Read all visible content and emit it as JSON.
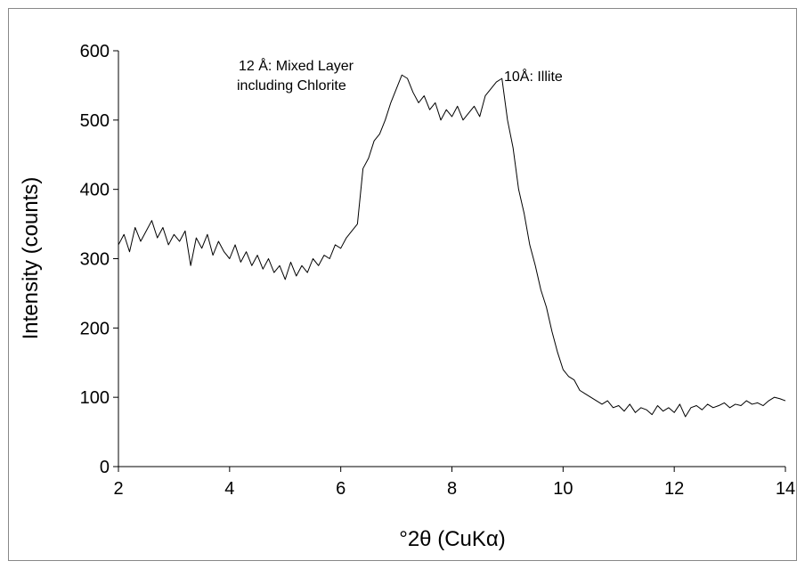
{
  "chart_data": {
    "type": "line",
    "x_label": "°2θ (CuKα)",
    "y_label": "Intensity (counts)",
    "annotations": [
      [
        "12 Å: Mixed Layer",
        "including Chlorite"
      ],
      [
        "10Å: Illite"
      ]
    ],
    "x": [
      2,
      2.1,
      2.2,
      2.3,
      2.4,
      2.5,
      2.6,
      2.7,
      2.8,
      2.9,
      3,
      3.1,
      3.2,
      3.3,
      3.4,
      3.5,
      3.6,
      3.7,
      3.8,
      3.9,
      4,
      4.1,
      4.2,
      4.3,
      4.4,
      4.5,
      4.6,
      4.7,
      4.8,
      4.9,
      5,
      5.1,
      5.2,
      5.3,
      5.4,
      5.5,
      5.6,
      5.7,
      5.8,
      5.9,
      6,
      6.1,
      6.2,
      6.3,
      6.4,
      6.5,
      6.6,
      6.7,
      6.8,
      6.9,
      7,
      7.1,
      7.2,
      7.3,
      7.4,
      7.5,
      7.6,
      7.7,
      7.8,
      7.9,
      8,
      8.1,
      8.2,
      8.3,
      8.4,
      8.5,
      8.6,
      8.7,
      8.8,
      8.9,
      9,
      9.1,
      9.2,
      9.3,
      9.4,
      9.5,
      9.6,
      9.7,
      9.8,
      9.9,
      10,
      10.1,
      10.2,
      10.3,
      10.4,
      10.5,
      10.6,
      10.7,
      10.8,
      10.9,
      11,
      11.1,
      11.2,
      11.3,
      11.4,
      11.5,
      11.6,
      11.7,
      11.8,
      11.9,
      12,
      12.1,
      12.2,
      12.3,
      12.4,
      12.5,
      12.6,
      12.7,
      12.8,
      12.9,
      13,
      13.1,
      13.2,
      13.3,
      13.4,
      13.5,
      13.6,
      13.7,
      13.8,
      13.9,
      14
    ],
    "series": [
      {
        "color": "#000000",
        "values": [
          320,
          335,
          310,
          345,
          325,
          340,
          355,
          330,
          345,
          320,
          335,
          325,
          340,
          290,
          330,
          315,
          335,
          305,
          325,
          310,
          300,
          320,
          295,
          310,
          290,
          305,
          285,
          300,
          280,
          290,
          270,
          295,
          275,
          290,
          280,
          300,
          290,
          305,
          300,
          320,
          315,
          330,
          340,
          350,
          430,
          445,
          470,
          480,
          500,
          525,
          545,
          565,
          560,
          540,
          525,
          535,
          515,
          525,
          500,
          515,
          505,
          520,
          500,
          510,
          520,
          505,
          535,
          545,
          555,
          560,
          500,
          460,
          400,
          365,
          320,
          290,
          255,
          230,
          195,
          165,
          140,
          130,
          125,
          110,
          105,
          100,
          95,
          90,
          95,
          85,
          88,
          80,
          90,
          78,
          85,
          82,
          75,
          88,
          80,
          85,
          78,
          90,
          72,
          85,
          88,
          82,
          90,
          85,
          88,
          92,
          85,
          90,
          88,
          95,
          90,
          92,
          88,
          95,
          100,
          98,
          95
        ]
      }
    ],
    "xlim": [
      2,
      14
    ],
    "xticks": [
      2,
      4,
      6,
      8,
      10,
      12,
      14
    ],
    "ylim": [
      0,
      600
    ],
    "yticks": [
      0,
      100,
      200,
      300,
      400,
      500,
      600
    ]
  }
}
